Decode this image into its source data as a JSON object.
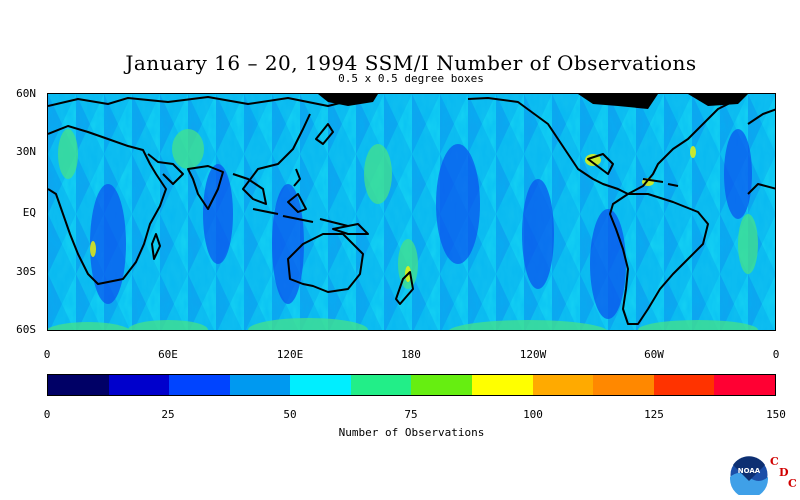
{
  "title": "January 16 – 20, 1994 SSM/I Number of Observations",
  "subtitle": "0.5 x 0.5 degree boxes",
  "map": {
    "lat_labels": [
      "60N",
      "30N",
      "EQ",
      "30S",
      "60S"
    ],
    "lon_labels": [
      "0",
      "60E",
      "120E",
      "180",
      "120W",
      "60W",
      "0"
    ],
    "lat_range": [
      -60,
      60
    ],
    "lon_range": [
      0,
      360
    ],
    "variable": "Number of Observations"
  },
  "colorbar": {
    "title": "Number of Observations",
    "tick_labels": [
      "0",
      "25",
      "50",
      "75",
      "100",
      "125",
      "150"
    ],
    "range": [
      0,
      150
    ],
    "colors": [
      "#000066",
      "#0000cc",
      "#0044ff",
      "#0099f0",
      "#00eeff",
      "#22ee88",
      "#66ee11",
      "#ffff00",
      "#ffaa00",
      "#ff8800",
      "#ff3300",
      "#ff0033"
    ]
  },
  "logo": {
    "noaa_text": "NOAA",
    "cdc_letters": [
      "C",
      "D",
      "C"
    ]
  }
}
